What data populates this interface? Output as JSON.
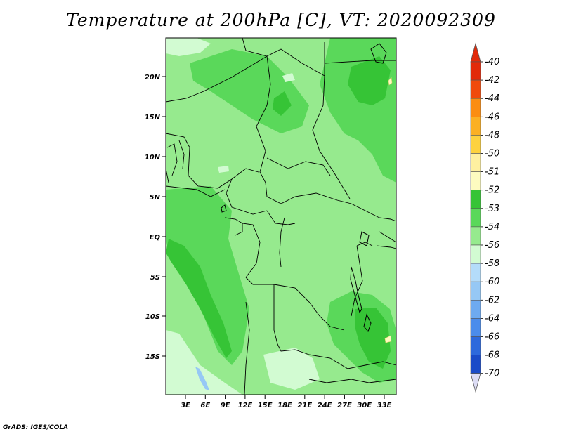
{
  "title": "Temperature at 200hPa [C], VT: 2020092309",
  "credit": "GrADS: IGES/COLA",
  "map": {
    "lat_labels": [
      "20N",
      "15N",
      "10N",
      "5N",
      "EQ",
      "5S",
      "10S",
      "15S"
    ],
    "lon_labels": [
      "3E",
      "6E",
      "9E",
      "12E",
      "15E",
      "18E",
      "21E",
      "24E",
      "27E",
      "30E",
      "33E"
    ]
  },
  "colorbar": {
    "levels": [
      {
        "label": "-40",
        "color": "#e22a0a"
      },
      {
        "label": "-42",
        "color": "#f04a0c"
      },
      {
        "label": "-44",
        "color": "#fb8d12"
      },
      {
        "label": "-46",
        "color": "#fbb024"
      },
      {
        "label": "-48",
        "color": "#fdd23f"
      },
      {
        "label": "-50",
        "color": "#fef0a0"
      },
      {
        "label": "-51",
        "color": "#fdfbc0"
      },
      {
        "label": "-52",
        "color": "#36c436"
      },
      {
        "label": "-53",
        "color": "#5ad85a"
      },
      {
        "label": "-54",
        "color": "#96ea8e"
      },
      {
        "label": "-56",
        "color": "#d2fbd2"
      },
      {
        "label": "-58",
        "color": "#b4dcfa"
      },
      {
        "label": "-60",
        "color": "#96c8f5"
      },
      {
        "label": "-62",
        "color": "#6eaaf0"
      },
      {
        "label": "-64",
        "color": "#4b8ceb"
      },
      {
        "label": "-66",
        "color": "#2d69dc"
      },
      {
        "label": "-68",
        "color": "#1a4bc8"
      },
      {
        "label": "-70",
        "color": "#0a23aa"
      }
    ],
    "top_triangle_color": "#e22a0a",
    "bottom_triangle_color": "#dcdcf4",
    "bottom_level_color": "#0a0a6e"
  }
}
